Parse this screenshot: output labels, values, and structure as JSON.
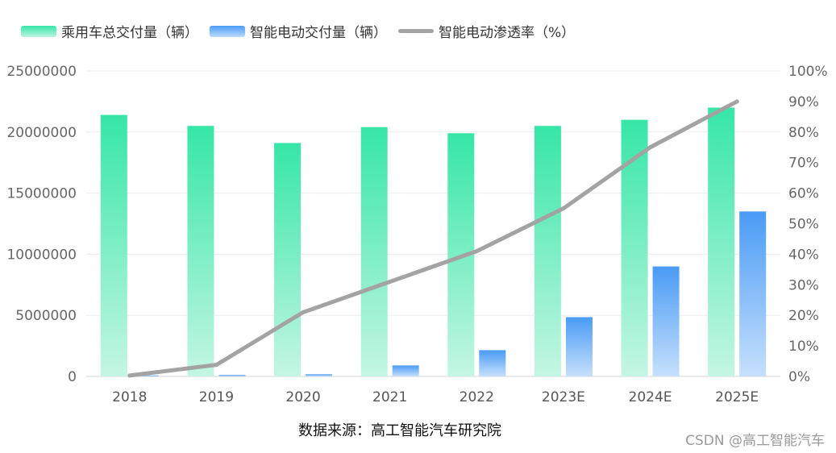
{
  "legend": {
    "series_passenger": "乘用车总交付量（辆）",
    "series_smart": "智能电动交付量（辆）",
    "series_rate": "智能电动渗透率（%）"
  },
  "source_note": "数据来源：高工智能汽车研究院",
  "watermark": "CSDN @高工智能汽车",
  "chart_data": {
    "type": "bar",
    "categories": [
      "2018",
      "2019",
      "2020",
      "2021",
      "2022",
      "2023E",
      "2024E",
      "2025E"
    ],
    "series": [
      {
        "name": "乘用车总交付量（辆）",
        "type": "bar",
        "axis": "left",
        "color": "#36e6a7",
        "values": [
          21400000,
          20500000,
          19100000,
          20400000,
          19900000,
          20500000,
          21000000,
          22000000
        ]
      },
      {
        "name": "智能电动交付量（辆）",
        "type": "bar",
        "axis": "left",
        "color": "#4a9bf5",
        "values": [
          80000,
          120000,
          180000,
          900000,
          2150000,
          4850000,
          9000000,
          13500000
        ]
      },
      {
        "name": "智能电动渗透率（%）",
        "type": "line",
        "axis": "right",
        "color": "#a3a3a3",
        "values": [
          0.3,
          3.8,
          21,
          31,
          41,
          55,
          75,
          90
        ]
      }
    ],
    "y_left": {
      "min": 0,
      "max": 25000000,
      "ticks": [
        "0",
        "5000000",
        "10000000",
        "15000000",
        "20000000",
        "25000000"
      ]
    },
    "y_right": {
      "min": 0,
      "max": 100,
      "ticks": [
        "0%",
        "10%",
        "20%",
        "30%",
        "40%",
        "50%",
        "60%",
        "70%",
        "80%",
        "90%",
        "100%"
      ]
    },
    "grid": true,
    "legend_position": "top-left"
  }
}
